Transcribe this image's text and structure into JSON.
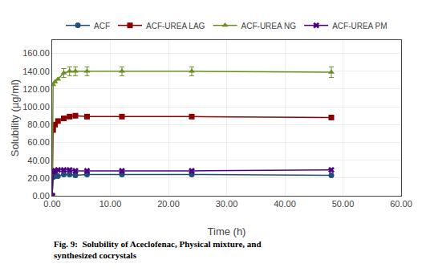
{
  "chart_data": {
    "type": "line",
    "xlabel": "Time (h)",
    "ylabel": "Solubility (µg/ml)",
    "caption": "Fig. 9:  Solubility of Aceclofenac, Physical mixture, and\nsynthesized cocrystals",
    "x": [
      0,
      0.17,
      0.5,
      1,
      2,
      3,
      4,
      6,
      12,
      24,
      48
    ],
    "series": [
      {
        "name": "ACF",
        "color": "#1F4E79",
        "marker": "circle",
        "values": [
          0,
          21,
          22,
          22,
          24,
          24,
          23,
          24,
          24,
          24,
          23
        ]
      },
      {
        "name": "ACF-UREA LAG",
        "color": "#8B0000",
        "marker": "square",
        "values": [
          0,
          74,
          80,
          84,
          87,
          89,
          90,
          89,
          89,
          89,
          88
        ],
        "errors": [
          null,
          null,
          null,
          null,
          2,
          2,
          2,
          2,
          2,
          2,
          2
        ]
      },
      {
        "name": "ACF-UREA NG",
        "color": "#6B8E23",
        "marker": "triangle-up",
        "values": [
          0,
          125,
          128,
          131,
          138,
          140,
          140,
          140,
          140,
          140,
          139
        ],
        "errors": [
          null,
          null,
          null,
          null,
          5,
          5,
          5,
          5,
          5,
          5,
          6
        ]
      },
      {
        "name": "ACF-UREA PM",
        "color": "#4B0082",
        "marker": "x",
        "values": [
          0,
          27,
          28,
          29,
          29,
          29,
          28,
          28,
          28,
          28,
          29
        ]
      }
    ],
    "xlim": [
      0,
      60
    ],
    "xticks": [
      {
        "value": 0,
        "label": "0.00"
      },
      {
        "value": 10,
        "label": "10.00"
      },
      {
        "value": 20,
        "label": "20.00"
      },
      {
        "value": 30,
        "label": "30.00"
      },
      {
        "value": 40,
        "label": "40.00"
      },
      {
        "value": 50,
        "label": "50.00"
      },
      {
        "value": 60,
        "label": "60.00"
      }
    ],
    "ylim": [
      0,
      175
    ],
    "yticks": [
      {
        "value": 0,
        "label": "0.00"
      },
      {
        "value": 20,
        "label": "20.00"
      },
      {
        "value": 40,
        "label": "40.00"
      },
      {
        "value": 60,
        "label": "60.00"
      },
      {
        "value": 80,
        "label": "80.00"
      },
      {
        "value": 100,
        "label": "100.00"
      },
      {
        "value": 120,
        "label": "120.00"
      },
      {
        "value": 140,
        "label": "140.00"
      },
      {
        "value": 160,
        "label": "160.00"
      }
    ],
    "legend": "top",
    "grid": true
  }
}
